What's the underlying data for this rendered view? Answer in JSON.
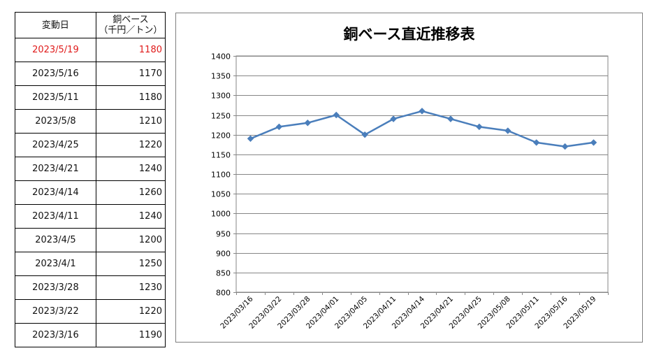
{
  "table": {
    "header_date": "変動日",
    "header_price_line1": "銅ベース",
    "header_price_line2": "（千円／トン）",
    "rows": [
      {
        "date": "2023/5/19",
        "price": "1180",
        "highlight": true
      },
      {
        "date": "2023/5/16",
        "price": "1170",
        "highlight": false
      },
      {
        "date": "2023/5/11",
        "price": "1180",
        "highlight": false
      },
      {
        "date": "2023/5/8",
        "price": "1210",
        "highlight": false
      },
      {
        "date": "2023/4/25",
        "price": "1220",
        "highlight": false
      },
      {
        "date": "2023/4/21",
        "price": "1240",
        "highlight": false
      },
      {
        "date": "2023/4/14",
        "price": "1260",
        "highlight": false
      },
      {
        "date": "2023/4/11",
        "price": "1240",
        "highlight": false
      },
      {
        "date": "2023/4/5",
        "price": "1200",
        "highlight": false
      },
      {
        "date": "2023/4/1",
        "price": "1250",
        "highlight": false
      },
      {
        "date": "2023/3/28",
        "price": "1230",
        "highlight": false
      },
      {
        "date": "2023/3/22",
        "price": "1220",
        "highlight": false
      },
      {
        "date": "2023/3/16",
        "price": "1190",
        "highlight": false
      }
    ],
    "highlight_color": "#e01b1b"
  },
  "chart_data": {
    "type": "line",
    "title": "銅ベース直近推移表",
    "categories": [
      "2023/03/16",
      "2023/03/22",
      "2023/03/28",
      "2023/04/01",
      "2023/04/05",
      "2023/04/11",
      "2023/04/14",
      "2023/04/21",
      "2023/04/25",
      "2023/05/08",
      "2023/05/11",
      "2023/05/16",
      "2023/05/19"
    ],
    "values": [
      1190,
      1220,
      1230,
      1250,
      1200,
      1240,
      1260,
      1240,
      1220,
      1210,
      1180,
      1170,
      1180
    ],
    "ylim": [
      800,
      1400
    ],
    "yticks": [
      800,
      850,
      900,
      950,
      1000,
      1050,
      1100,
      1150,
      1200,
      1250,
      1300,
      1350,
      1400
    ],
    "grid": true,
    "legend": "none",
    "line_color": "#4a7ebb",
    "grid_color": "#868686"
  }
}
